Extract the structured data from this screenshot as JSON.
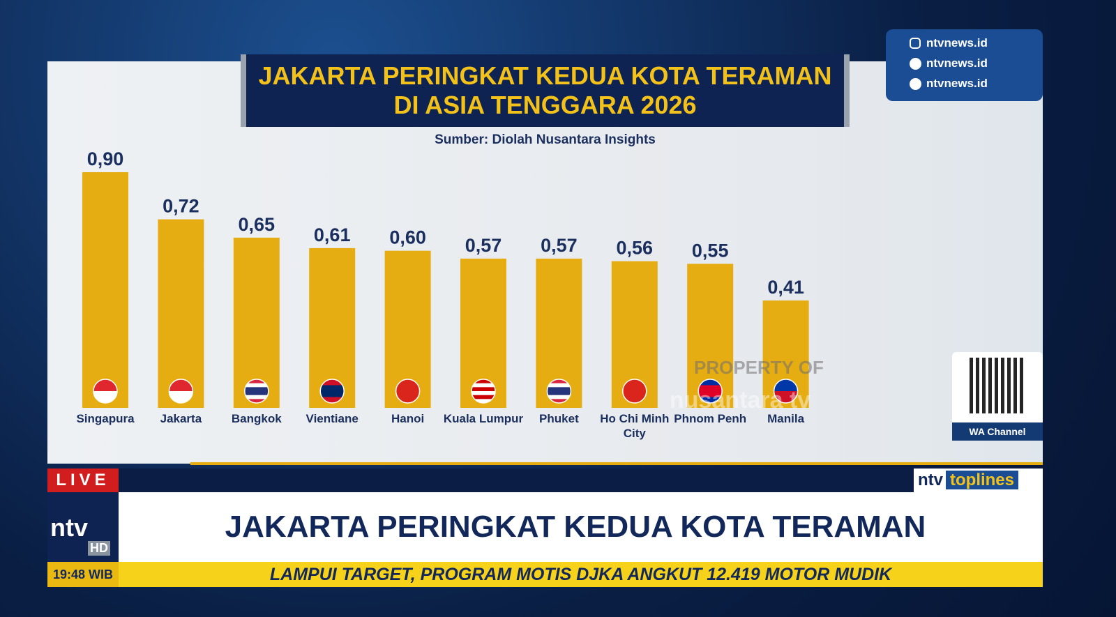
{
  "chart_data": {
    "type": "bar",
    "title": [
      "JAKARTA PERINGKAT KEDUA KOTA TERAMAN",
      "DI ASIA TENGGARA 2026"
    ],
    "subtitle": "Sumber: Diolah Nusantara Insights",
    "categories": [
      "Singapura",
      "Jakarta",
      "Bangkok",
      "Vientiane",
      "Hanoi",
      "Kuala Lumpur",
      "Phuket",
      "Ho Chi Minh City",
      "Phnom Penh",
      "Manila"
    ],
    "values": [
      0.9,
      0.72,
      0.65,
      0.61,
      0.6,
      0.57,
      0.57,
      0.56,
      0.55,
      0.41
    ],
    "value_labels": [
      "0,90",
      "0,72",
      "0,65",
      "0,61",
      "0,60",
      "0,57",
      "0,57",
      "0,56",
      "0,55",
      "0,41"
    ],
    "color": "#e6ad12"
  },
  "broadcast": {
    "social": [
      "ntvnews.id",
      "ntvnews.id",
      "ntvnews.id"
    ],
    "qr_label": "WA Channel",
    "watermark": [
      "PROPERTY OF",
      "nusantara tv"
    ],
    "live": "LIVE",
    "program": [
      "ntv",
      "toplines"
    ],
    "channel": "ntv",
    "quality": "HD",
    "headline": "JAKARTA PERINGKAT KEDUA KOTA TERAMAN",
    "time": "19:48 WIB",
    "ticker": "LAMPUI TARGET, PROGRAM MOTIS DJKA ANGKUT 12.419 MOTOR MUDIK"
  }
}
